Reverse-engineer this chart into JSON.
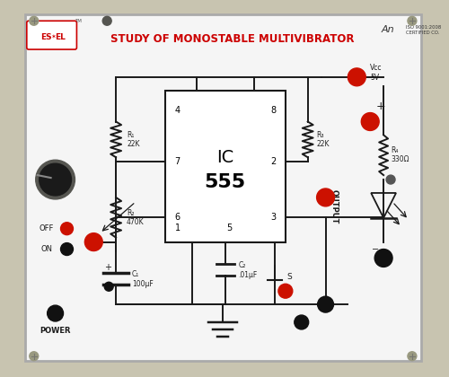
{
  "title": "STUDY OF MONOSTABLE MULTIVIBRATOR",
  "brand_text": "ES✶EL",
  "tm_text": "TM",
  "iso_text": "ISO 9001:2008\nCERTIFIED CO.",
  "an_text": "An",
  "vcc_label": "Vcc\n5V",
  "ic_line1": "IC",
  "ic_line2": "555",
  "r1_label": "R₁\n22K",
  "r2_label": "R₂\n470K",
  "r3_label": "R₃\n22K",
  "r4_label": "R₄\n330Ω",
  "c1_label": "C₁\n100μF",
  "c2_label": "C₂\n.01μF",
  "output_label": "OUTPUT",
  "switch_label": "S",
  "power_label": "POWER",
  "off_label": "OFF",
  "on_label": "ON",
  "plus_label": "+",
  "minus_label": "−",
  "bg_outer": "#c8c4b0",
  "bg_panel": "#f5f5f5",
  "line_color": "#1a1a1a",
  "red_jack": "#cc1100",
  "black_jack": "#111111",
  "title_color": "#cc0000",
  "brand_color": "#cc0000",
  "comp_color": "#222222",
  "knob_color": "#1a1a1a",
  "ic_fill": "#ffffff",
  "screw_color": "#999980"
}
